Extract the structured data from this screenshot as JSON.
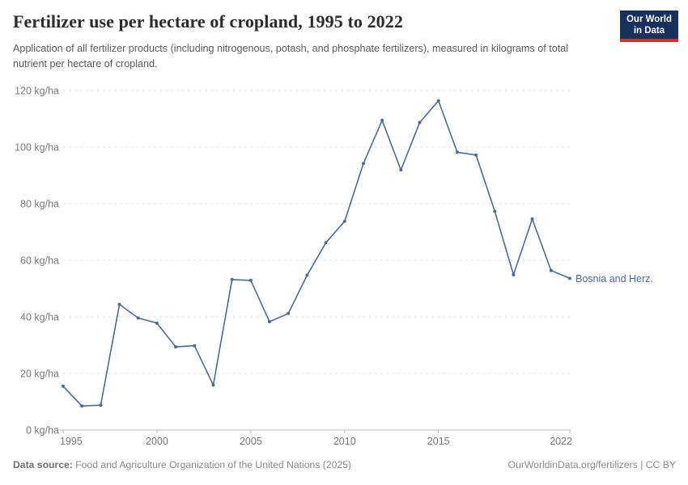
{
  "header": {
    "title": "Fertilizer use per hectare of cropland, 1995 to 2022",
    "subtitle": "Application of all fertilizer products (including nitrogenous, potash, and phosphate fertilizers), measured in kilograms of total nutrient per hectare of cropland.",
    "logo": {
      "line1": "Our World",
      "line2": "in Data",
      "bg_color": "#18305e",
      "accent_color": "#d1322a"
    }
  },
  "chart_data": {
    "type": "line",
    "title": "Fertilizer use per hectare of cropland, 1995 to 2022",
    "x": [
      1995,
      1996,
      1997,
      1998,
      1999,
      2000,
      2001,
      2002,
      2003,
      2004,
      2005,
      2006,
      2007,
      2008,
      2009,
      2010,
      2011,
      2012,
      2013,
      2014,
      2015,
      2016,
      2017,
      2018,
      2019,
      2020,
      2021,
      2022
    ],
    "series": [
      {
        "name": "Bosnia and Herz.",
        "color": "#4c6a9c",
        "values": [
          15.5,
          8.5,
          8.8,
          44.4,
          39.6,
          37.8,
          29.4,
          29.8,
          15.9,
          53.2,
          52.9,
          38.3,
          41.2,
          54.7,
          66.2,
          73.8,
          94.2,
          109.5,
          91.9,
          108.7,
          116.4,
          98.2,
          97.2,
          77.3,
          54.9,
          74.6,
          56.4,
          53.6
        ]
      }
    ],
    "xlabel": "",
    "ylabel": "kg/ha",
    "xlim": [
      1995,
      2022
    ],
    "ylim": [
      0,
      120
    ],
    "x_ticks": [
      1995,
      2000,
      2005,
      2010,
      2015,
      2022
    ],
    "y_ticks": [
      0,
      20,
      40,
      60,
      80,
      100,
      120
    ],
    "y_tick_suffix": " kg/ha",
    "grid": "horizontal-dashed",
    "legend": "end-of-line-label",
    "colors": {
      "line": "#4c6a9c",
      "gridline": "#e0e0e0",
      "axis": "#bdbdbd",
      "tick_text": "#7a7a7a"
    }
  },
  "footer": {
    "datasource_label": "Data source:",
    "datasource_value": " Food and Agriculture Organization of the United Nations (2025)",
    "credit": "OurWorldinData.org/fertilizers | CC BY"
  }
}
